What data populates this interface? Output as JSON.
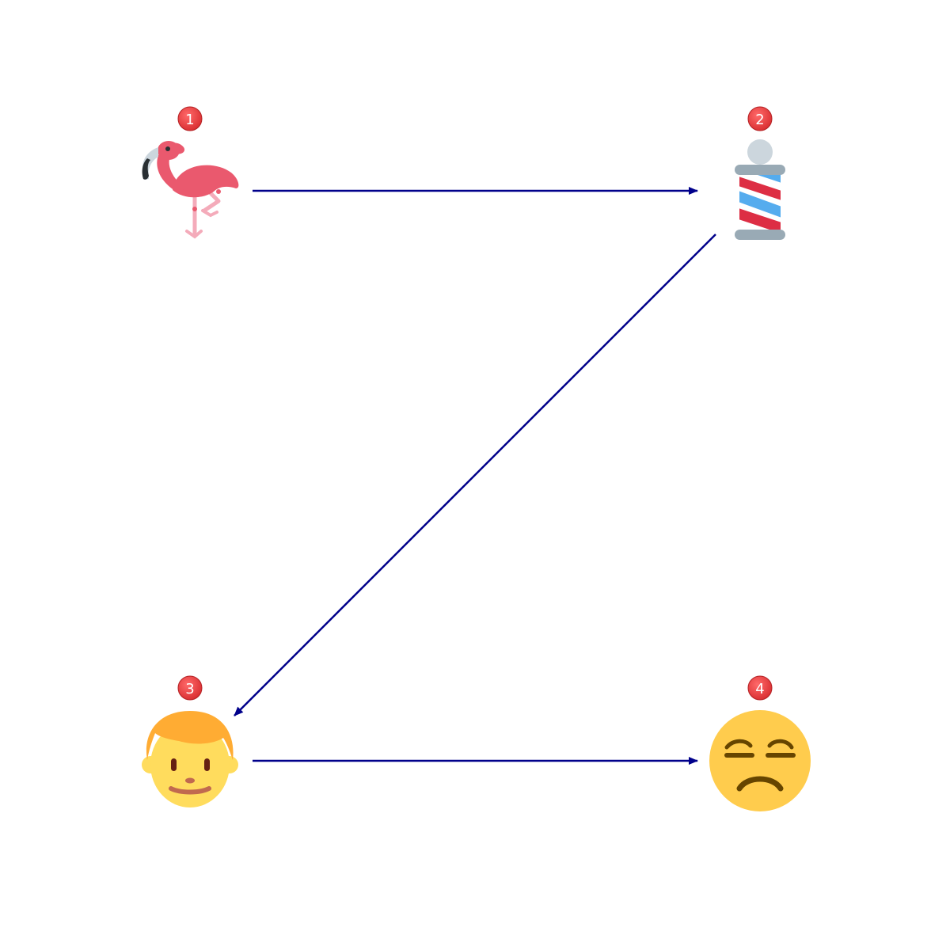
{
  "diagram": {
    "type": "emoji-sequence",
    "nodes": [
      {
        "id": "n1",
        "label": "1",
        "icon": "flamingo-icon",
        "colors": {
          "body": "#EA596E",
          "leg": "#F4ABBA",
          "beak": "#292F33"
        }
      },
      {
        "id": "n2",
        "label": "2",
        "icon": "barber-pole-icon",
        "colors": {
          "cap": "#CCD6DD",
          "band": "#99AAB5",
          "red_stripe": "#DD2E44",
          "blue_stripe": "#55ACEE"
        }
      },
      {
        "id": "n3",
        "label": "3",
        "icon": "boy-face-icon",
        "colors": {
          "hair": "#FFAC33",
          "skin": "#FFDC5D",
          "mouth": "#C1694F",
          "eyes": "#662113"
        }
      },
      {
        "id": "n4",
        "label": "4",
        "icon": "unamused-face-icon",
        "colors": {
          "face": "#FFCC4D",
          "features": "#664500"
        }
      }
    ],
    "edges": [
      {
        "from": "n1",
        "to": "n2"
      },
      {
        "from": "n2",
        "to": "n3"
      },
      {
        "from": "n3",
        "to": "n4"
      }
    ],
    "colors": {
      "arrow": "#00008B",
      "badge_fill": "#E8383B",
      "badge_text": "#FFFFFF"
    }
  }
}
